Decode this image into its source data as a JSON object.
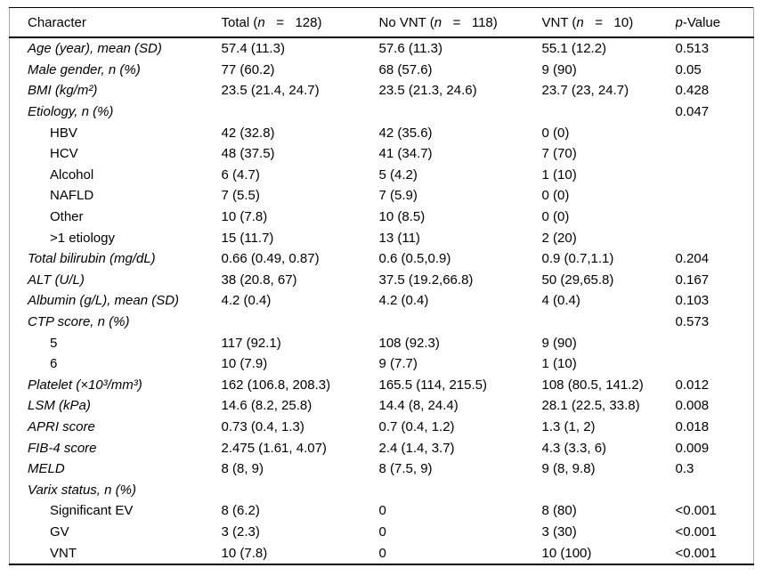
{
  "table": {
    "columns": [
      {
        "pre": "Character",
        "it": "",
        "post": ""
      },
      {
        "pre": "Total (",
        "it": "n",
        "post": "   =   128)"
      },
      {
        "pre": "No VNT (",
        "it": "n",
        "post": "   =   118)"
      },
      {
        "pre": "VNT (",
        "it": "n",
        "post": "   =   10)"
      },
      {
        "pre": "",
        "it": "p",
        "post": "-Value"
      }
    ],
    "rows": [
      {
        "style": "main",
        "label": "Age (year), mean (SD)",
        "total": "57.4 (11.3)",
        "no_vnt": "57.6 (11.3)",
        "vnt": "55.1 (12.2)",
        "p": "0.513"
      },
      {
        "style": "main",
        "label": "Male gender, n (%)",
        "total": "77 (60.2)",
        "no_vnt": "68 (57.6)",
        "vnt": "9 (90)",
        "p": "0.05"
      },
      {
        "style": "main",
        "label": "BMI (kg/m²)",
        "total": "23.5 (21.4, 24.7)",
        "no_vnt": "23.5 (21.3, 24.6)",
        "vnt": "23.7 (23, 24.7)",
        "p": "0.428"
      },
      {
        "style": "main",
        "label": "Etiology, n (%)",
        "total": "",
        "no_vnt": "",
        "vnt": "",
        "p": "0.047"
      },
      {
        "style": "sub",
        "label": "HBV",
        "total": "42 (32.8)",
        "no_vnt": "42 (35.6)",
        "vnt": "0 (0)",
        "p": ""
      },
      {
        "style": "sub",
        "label": "HCV",
        "total": "48 (37.5)",
        "no_vnt": "41 (34.7)",
        "vnt": "7 (70)",
        "p": ""
      },
      {
        "style": "sub",
        "label": "Alcohol",
        "total": "6 (4.7)",
        "no_vnt": "5 (4.2)",
        "vnt": "1 (10)",
        "p": ""
      },
      {
        "style": "sub",
        "label": "NAFLD",
        "total": "7 (5.5)",
        "no_vnt": "7 (5.9)",
        "vnt": "0 (0)",
        "p": ""
      },
      {
        "style": "sub",
        "label": "Other",
        "total": "10 (7.8)",
        "no_vnt": "10 (8.5)",
        "vnt": "0 (0)",
        "p": ""
      },
      {
        "style": "sub",
        "label": ">1 etiology",
        "total": "15 (11.7)",
        "no_vnt": "13 (11)",
        "vnt": "2 (20)",
        "p": ""
      },
      {
        "style": "main",
        "label": "Total bilirubin (mg/dL)",
        "total": "0.66 (0.49, 0.87)",
        "no_vnt": "0.6 (0.5,0.9)",
        "vnt": "0.9 (0.7,1.1)",
        "p": "0.204"
      },
      {
        "style": "main",
        "label": "ALT (U/L)",
        "total": "38 (20.8, 67)",
        "no_vnt": "37.5 (19.2,66.8)",
        "vnt": "50 (29,65.8)",
        "p": "0.167"
      },
      {
        "style": "main",
        "label": "Albumin (g/L), mean (SD)",
        "total": "4.2 (0.4)",
        "no_vnt": "4.2 (0.4)",
        "vnt": "4 (0.4)",
        "p": "0.103"
      },
      {
        "style": "main",
        "label": "CTP score, n (%)",
        "total": "",
        "no_vnt": "",
        "vnt": "",
        "p": "0.573"
      },
      {
        "style": "sub",
        "label": "5",
        "total": "117 (92.1)",
        "no_vnt": "108 (92.3)",
        "vnt": "9 (90)",
        "p": ""
      },
      {
        "style": "sub",
        "label": "6",
        "total": "10 (7.9)",
        "no_vnt": "9 (7.7)",
        "vnt": "1 (10)",
        "p": ""
      },
      {
        "style": "main",
        "label": "Platelet (×10³/mm³)",
        "total": "162 (106.8, 208.3)",
        "no_vnt": "165.5 (114, 215.5)",
        "vnt": "108 (80.5, 141.2)",
        "p": "0.012"
      },
      {
        "style": "main",
        "label": "LSM (kPa)",
        "total": "14.6 (8.2, 25.8)",
        "no_vnt": "14.4 (8, 24.4)",
        "vnt": "28.1 (22.5, 33.8)",
        "p": "0.008"
      },
      {
        "style": "main",
        "label": "APRI score",
        "total": "0.73 (0.4, 1.3)",
        "no_vnt": "0.7 (0.4, 1.2)",
        "vnt": "1.3 (1, 2)",
        "p": "0.018"
      },
      {
        "style": "main",
        "label": "FIB-4 score",
        "total": "2.475 (1.61, 4.07)",
        "no_vnt": "2.4 (1.4, 3.7)",
        "vnt": "4.3 (3.3, 6)",
        "p": "0.009"
      },
      {
        "style": "main",
        "label": "MELD",
        "total": "8 (8, 9)",
        "no_vnt": "8 (7.5, 9)",
        "vnt": "9 (8, 9.8)",
        "p": "0.3"
      },
      {
        "style": "main",
        "label": "Varix status, n (%)",
        "total": "",
        "no_vnt": "",
        "vnt": "",
        "p": ""
      },
      {
        "style": "sub",
        "label": "Significant EV",
        "total": "8 (6.2)",
        "no_vnt": "0",
        "vnt": "8 (80)",
        "p": "<0.001"
      },
      {
        "style": "sub",
        "label": "GV",
        "total": "3 (2.3)",
        "no_vnt": "0",
        "vnt": "3 (30)",
        "p": "<0.001"
      },
      {
        "style": "sub",
        "label": "VNT",
        "total": "10 (7.8)",
        "no_vnt": "0",
        "vnt": "10 (100)",
        "p": "<0.001"
      }
    ]
  }
}
